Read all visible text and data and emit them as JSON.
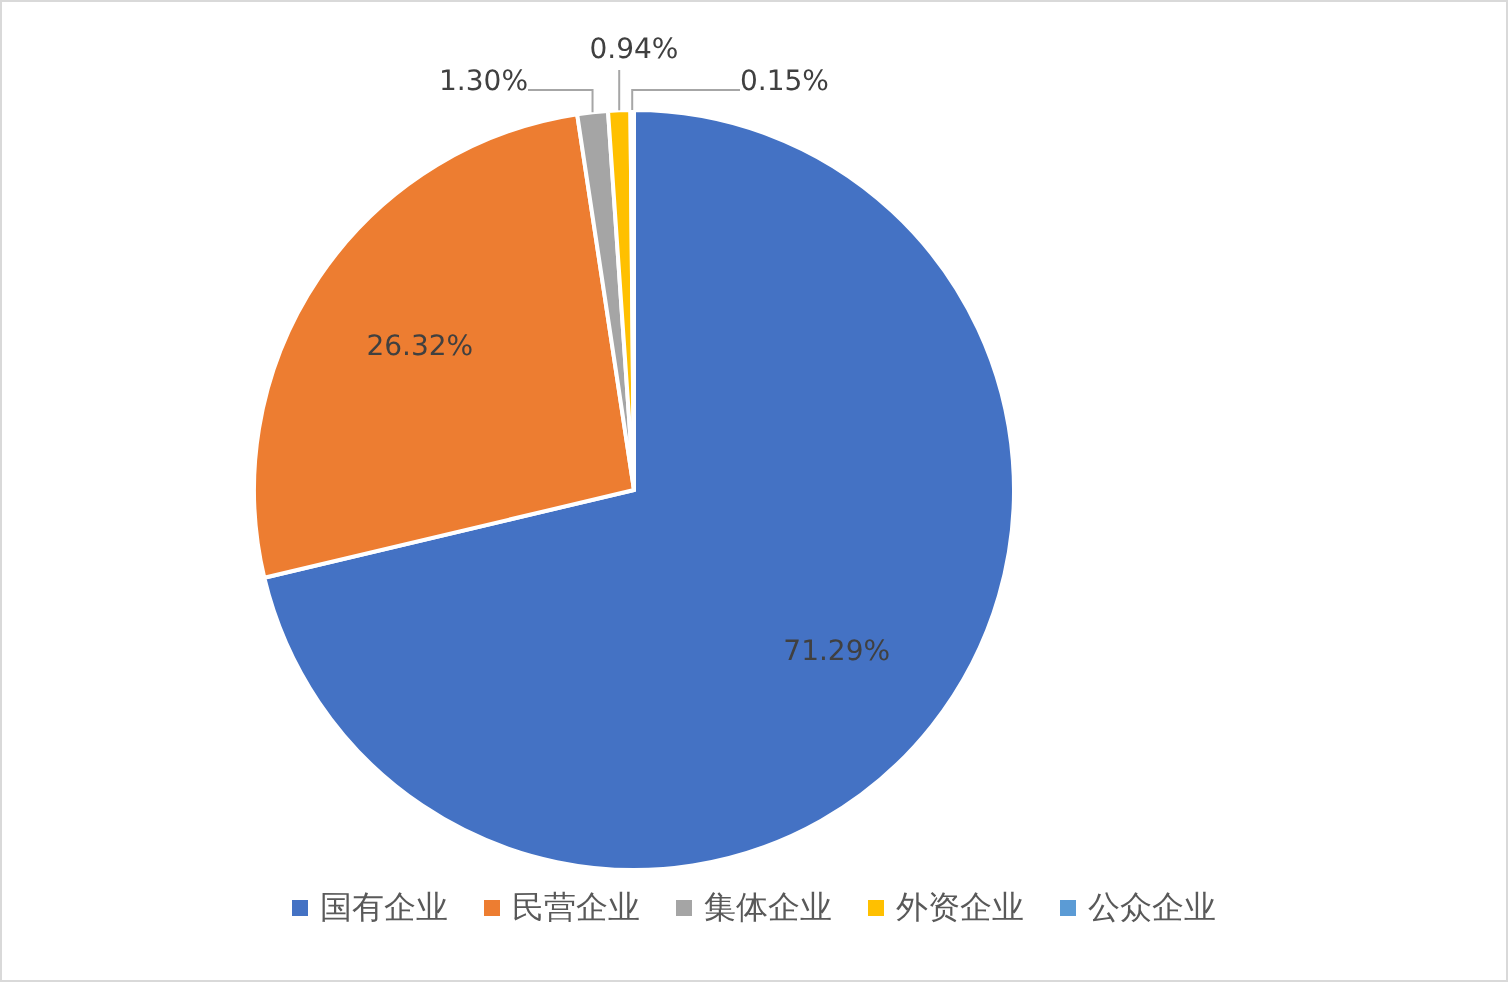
{
  "chart_data": {
    "type": "pie",
    "categories": [
      "国有企业",
      "民营企业",
      "集体企业",
      "外资企业",
      "公众企业"
    ],
    "values": [
      71.29,
      26.32,
      1.3,
      0.94,
      0.15
    ],
    "colors": [
      "#4472c4",
      "#ed7d31",
      "#a5a5a5",
      "#ffc000",
      "#5b9bd5"
    ],
    "value_labels": [
      "71.29%",
      "26.32%",
      "1.30%",
      "0.94%",
      "0.15%"
    ],
    "legend": "bottom"
  }
}
